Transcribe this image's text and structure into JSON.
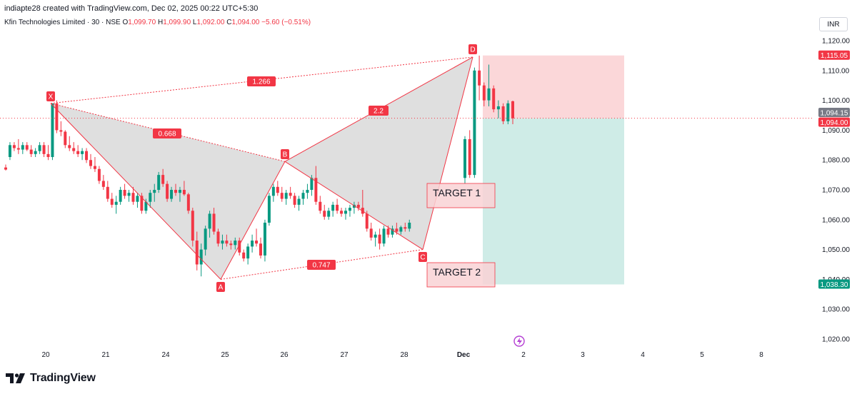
{
  "header": {
    "attribution": "indiapte28 created with TradingView.com, Dec 02, 2025 00:22 UTC+5:30",
    "symbol": "Kfin Technologies Limited · 30 · NSE",
    "open_label": "O",
    "open": "1,099.70",
    "high_label": "H",
    "high": "1,099.90",
    "low_label": "L",
    "low": "1,092.00",
    "close_label": "C",
    "close": "1,094.00",
    "change": "−5.60 (−0.51%)",
    "currency": "INR"
  },
  "footer": {
    "brand": "TradingView"
  },
  "colors": {
    "up": "#089981",
    "down": "#f23645",
    "pattern_fill": "#d9d9d9",
    "stop_zone": "#f9c9cc",
    "target_zone": "#bfe6df"
  },
  "chart_data": {
    "type": "candlestick",
    "interval": "30",
    "ylim": [
      1015,
      1125
    ],
    "y_ticks": [
      "1,020.00",
      "1,030.00",
      "1,040.00",
      "1,050.00",
      "1,060.00",
      "1,070.00",
      "1,080.00",
      "1,090.00",
      "1,100.00",
      "1,110.00",
      "1,120.00"
    ],
    "x_ticks": [
      "20",
      "21",
      "24",
      "25",
      "26",
      "27",
      "28",
      "Dec",
      "2",
      "3",
      "4",
      "5",
      "8"
    ],
    "price_labels": [
      {
        "text": "1,115.05",
        "value": 1115.05,
        "color": "#f23645"
      },
      {
        "text": "1,094.15",
        "value": 1094.15,
        "color": "#787b86"
      },
      {
        "text": "1,094.00",
        "value": 1094.0,
        "color": "#f23645"
      },
      {
        "text": "1,038.30",
        "value": 1038.3,
        "color": "#089981"
      }
    ],
    "current_price": 1094.0,
    "pattern_points": [
      {
        "label": "X",
        "x": "20",
        "value": 1099
      },
      {
        "label": "A",
        "x": "25",
        "value": 1040
      },
      {
        "label": "B",
        "x": "26",
        "value": 1079.5
      },
      {
        "label": "C",
        "x": "28",
        "value": 1050
      },
      {
        "label": "D",
        "x": "Dec",
        "value": 1114.5
      }
    ],
    "ratios": [
      {
        "text": "0.668"
      },
      {
        "text": "1.266"
      },
      {
        "text": "2.2"
      },
      {
        "text": "0.747"
      }
    ],
    "position": {
      "entry": 1094.0,
      "stop": 1115.05,
      "target": 1038.3
    },
    "annotations": [
      {
        "text": "TARGET 1"
      },
      {
        "text": "TARGET 2"
      }
    ],
    "candles": [
      [
        1077.5,
        1078.5,
        1076.5,
        1076.8
      ],
      [
        1081,
        1086,
        1080,
        1085
      ],
      [
        1085,
        1086,
        1083,
        1084
      ],
      [
        1084,
        1087,
        1082,
        1083.5
      ],
      [
        1083.5,
        1086,
        1082,
        1085
      ],
      [
        1085,
        1086,
        1083,
        1083.5
      ],
      [
        1083.5,
        1085,
        1081,
        1082
      ],
      [
        1082,
        1084,
        1081,
        1083
      ],
      [
        1083,
        1086,
        1082,
        1085
      ],
      [
        1085,
        1086,
        1081,
        1082
      ],
      [
        1082,
        1085,
        1080,
        1081
      ],
      [
        1081,
        1099,
        1080,
        1099
      ],
      [
        1099,
        1100,
        1089,
        1090
      ],
      [
        1090,
        1093,
        1088,
        1089.5
      ],
      [
        1089.5,
        1090,
        1084,
        1085
      ],
      [
        1085,
        1088,
        1083,
        1084
      ],
      [
        1084,
        1086,
        1082,
        1083
      ],
      [
        1083,
        1085,
        1081,
        1082
      ],
      [
        1082,
        1084,
        1080,
        1083
      ],
      [
        1083,
        1084,
        1079,
        1080
      ],
      [
        1080,
        1082,
        1077,
        1078
      ],
      [
        1078,
        1081,
        1076,
        1077
      ],
      [
        1077,
        1078,
        1072,
        1073
      ],
      [
        1073,
        1075,
        1070,
        1071
      ],
      [
        1071,
        1073,
        1066,
        1067
      ],
      [
        1067,
        1069,
        1064,
        1065
      ],
      [
        1065,
        1068,
        1062,
        1066
      ],
      [
        1066,
        1071,
        1065,
        1070
      ],
      [
        1070,
        1072,
        1067,
        1068
      ],
      [
        1068,
        1070,
        1066,
        1069
      ],
      [
        1069,
        1071,
        1065,
        1066
      ],
      [
        1066,
        1069,
        1064,
        1068
      ],
      [
        1068,
        1069,
        1062,
        1063
      ],
      [
        1063,
        1067,
        1062,
        1066
      ],
      [
        1066,
        1070,
        1064,
        1069
      ],
      [
        1069,
        1072,
        1066,
        1070
      ],
      [
        1070,
        1076,
        1069,
        1075
      ],
      [
        1075,
        1077,
        1071,
        1072
      ],
      [
        1072,
        1073,
        1066,
        1067
      ],
      [
        1067,
        1071,
        1066,
        1070
      ],
      [
        1070,
        1072,
        1068,
        1069
      ],
      [
        1069,
        1071,
        1066,
        1070
      ],
      [
        1070,
        1073,
        1068,
        1068.5
      ],
      [
        1068.5,
        1069,
        1062,
        1063
      ],
      [
        1063,
        1064,
        1051,
        1053
      ],
      [
        1053,
        1056,
        1043,
        1045
      ],
      [
        1045,
        1052,
        1041,
        1050
      ],
      [
        1050,
        1058,
        1048,
        1057
      ],
      [
        1057,
        1063,
        1054,
        1062
      ],
      [
        1062,
        1064,
        1055,
        1056
      ],
      [
        1056,
        1057,
        1051,
        1052
      ],
      [
        1052,
        1055,
        1050,
        1053
      ],
      [
        1053,
        1055,
        1051,
        1052
      ],
      [
        1052,
        1053,
        1050,
        1051.5
      ],
      [
        1051.5,
        1054,
        1050,
        1053
      ],
      [
        1053,
        1054,
        1048,
        1049
      ],
      [
        1049,
        1050,
        1046,
        1047
      ],
      [
        1047,
        1052,
        1045,
        1051
      ],
      [
        1051,
        1055,
        1049,
        1053
      ],
      [
        1053,
        1057,
        1051,
        1052
      ],
      [
        1052,
        1054,
        1047,
        1048
      ],
      [
        1048,
        1060,
        1046,
        1059
      ],
      [
        1059,
        1069,
        1058,
        1068
      ],
      [
        1068,
        1072,
        1066,
        1071
      ],
      [
        1071,
        1073,
        1068,
        1069
      ],
      [
        1069,
        1071,
        1066,
        1067
      ],
      [
        1067,
        1070,
        1065,
        1069
      ],
      [
        1069,
        1071,
        1067,
        1068
      ],
      [
        1068,
        1069,
        1064,
        1065
      ],
      [
        1065,
        1068,
        1063,
        1067
      ],
      [
        1067,
        1070,
        1065,
        1069
      ],
      [
        1069,
        1072,
        1067,
        1070
      ],
      [
        1070,
        1075,
        1068,
        1074
      ],
      [
        1074,
        1078,
        1065,
        1066
      ],
      [
        1066,
        1068,
        1062,
        1063
      ],
      [
        1063,
        1065,
        1060,
        1061
      ],
      [
        1061,
        1064,
        1060,
        1063
      ],
      [
        1063,
        1066,
        1061,
        1065
      ],
      [
        1065,
        1067,
        1062,
        1063
      ],
      [
        1063,
        1064,
        1061,
        1062
      ],
      [
        1062,
        1064,
        1060,
        1063
      ],
      [
        1063,
        1065,
        1061,
        1064
      ],
      [
        1064,
        1066,
        1062,
        1065
      ],
      [
        1065,
        1066,
        1063,
        1064
      ],
      [
        1064,
        1070,
        1061,
        1062
      ],
      [
        1062,
        1063,
        1056,
        1057
      ],
      [
        1057,
        1059,
        1053,
        1054
      ],
      [
        1054,
        1056,
        1051,
        1055
      ],
      [
        1055,
        1057,
        1050,
        1052
      ],
      [
        1052,
        1058,
        1051,
        1057
      ],
      [
        1057,
        1058,
        1054,
        1055
      ],
      [
        1055,
        1058,
        1054,
        1057
      ],
      [
        1057,
        1059,
        1055,
        1056
      ],
      [
        1056,
        1058,
        1055,
        1057.5
      ],
      [
        1057.5,
        1059,
        1056,
        1057
      ],
      [
        1057,
        1060,
        1056,
        1059
      ],
      [
        1074,
        1088,
        1072,
        1087
      ],
      [
        1087,
        1090,
        1074,
        1075
      ],
      [
        1075,
        1111,
        1074,
        1110
      ],
      [
        1110,
        1115,
        1100,
        1105
      ],
      [
        1105,
        1106,
        1098,
        1100
      ],
      [
        1100,
        1112,
        1098,
        1104
      ],
      [
        1104,
        1105,
        1096,
        1097
      ],
      [
        1097,
        1100,
        1094,
        1098
      ],
      [
        1098,
        1099,
        1092,
        1093
      ],
      [
        1093,
        1100,
        1092,
        1099
      ],
      [
        1099.7,
        1099.9,
        1092,
        1094
      ]
    ]
  }
}
